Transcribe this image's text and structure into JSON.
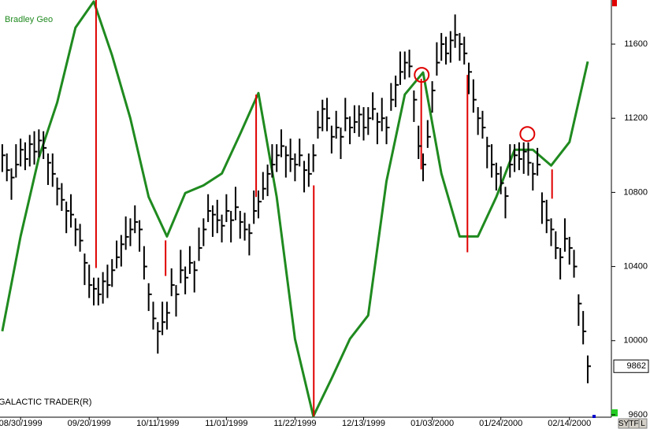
{
  "chart_data": {
    "type": "ohlc",
    "title": "Bradley Geo",
    "footer": "GALACTIC TRADER(R)",
    "buttons": [
      "SY",
      "TF",
      "L"
    ],
    "bar_color": "#000000",
    "xlim": [
      -0.5,
      133
    ],
    "ylim": [
      9587,
      11838
    ],
    "yticks": [
      9600,
      10000,
      10400,
      10800,
      11200,
      11600
    ],
    "xticks": [
      {
        "value": 4,
        "label": "08/30/1999"
      },
      {
        "value": 19,
        "label": "09/20/1999"
      },
      {
        "value": 34,
        "label": "10/11/1999"
      },
      {
        "value": 49,
        "label": "11/01/1999"
      },
      {
        "value": 64,
        "label": "11/22/1999"
      },
      {
        "value": 79,
        "label": "12/13/1999"
      },
      {
        "value": 94,
        "label": "01/03/2000"
      },
      {
        "value": 109,
        "label": "01/24/2000"
      },
      {
        "value": 124,
        "label": "02/14/2000"
      }
    ],
    "high": [
      11060,
      11010,
      10930,
      11060,
      11090,
      11070,
      11110,
      11130,
      11140,
      11130,
      11010,
      11010,
      10880,
      10850,
      10750,
      10790,
      10660,
      10630,
      10470,
      10410,
      10340,
      10340,
      10370,
      10410,
      10440,
      10540,
      10570,
      10670,
      10660,
      10730,
      10650,
      10510,
      10310,
      10210,
      10100,
      10210,
      10210,
      10390,
      10300,
      10490,
      10400,
      10510,
      10430,
      10610,
      10660,
      10790,
      10730,
      10760,
      10680,
      10790,
      10700,
      10830,
      10700,
      10690,
      10630,
      10810,
      10810,
      10910,
      10950,
      11060,
      11060,
      11140,
      11050,
      11090,
      11010,
      11090,
      10970,
      11010,
      11060,
      11240,
      11300,
      11310,
      11160,
      11240,
      11150,
      11310,
      11210,
      11270,
      11270,
      11260,
      11260,
      11340,
      11230,
      11310,
      11210,
      11390,
      11430,
      11560,
      11560,
      11570,
      11350,
      11160,
      11010,
      11190,
      11400,
      11610,
      11660,
      11640,
      11670,
      11760,
      11660,
      11640,
      11500,
      11410,
      11260,
      11240,
      11100,
      11060,
      10960,
      10940,
      10830,
      11060,
      11060,
      11070,
      11070,
      11070,
      10960,
      11040,
      10800,
      10760,
      10660,
      10590,
      10500,
      10660,
      10560,
      10490,
      10250,
      10160,
      9920
    ],
    "low": [
      10910,
      10860,
      10760,
      10880,
      10940,
      10920,
      10940,
      10950,
      10990,
      10980,
      10840,
      10830,
      10730,
      10700,
      10580,
      10610,
      10510,
      10480,
      10300,
      10230,
      10190,
      10190,
      10200,
      10230,
      10290,
      10390,
      10400,
      10490,
      10510,
      10580,
      10480,
      10330,
      10160,
      10060,
      9930,
      10030,
      10060,
      10240,
      10130,
      10310,
      10250,
      10360,
      10260,
      10430,
      10510,
      10640,
      10560,
      10580,
      10530,
      10640,
      10530,
      10650,
      10550,
      10540,
      10460,
      10630,
      10660,
      10760,
      10780,
      10880,
      10910,
      10990,
      10880,
      10910,
      10860,
      10940,
      10800,
      10830,
      10910,
      11090,
      11130,
      11130,
      11010,
      11090,
      10980,
      11130,
      11060,
      11120,
      11100,
      11080,
      11110,
      11190,
      11060,
      11130,
      11060,
      11240,
      11260,
      11380,
      11410,
      11420,
      11180,
      10980,
      10860,
      11040,
      11230,
      11430,
      11510,
      11490,
      11500,
      11580,
      11510,
      11490,
      11330,
      11230,
      11110,
      11090,
      10930,
      10880,
      10810,
      10790,
      10660,
      10880,
      10910,
      10920,
      10900,
      10890,
      10810,
      10890,
      10630,
      10580,
      10510,
      10440,
      10330,
      10480,
      10410,
      10340,
      10080,
      9980,
      9770
    ],
    "close": [
      11000,
      10920,
      10880,
      10950,
      11030,
      10980,
      11060,
      11020,
      11080,
      11040,
      10960,
      10900,
      10820,
      10760,
      10700,
      10680,
      10600,
      10540,
      10420,
      10300,
      10280,
      10250,
      10320,
      10300,
      10380,
      10450,
      10520,
      10560,
      10600,
      10640,
      10600,
      10400,
      10250,
      10120,
      10050,
      10100,
      10150,
      10300,
      10250,
      10380,
      10340,
      10420,
      10380,
      10500,
      10600,
      10700,
      10680,
      10650,
      10620,
      10700,
      10650,
      10720,
      10640,
      10600,
      10580,
      10700,
      10750,
      10820,
      10900,
      10950,
      11000,
      11050,
      11000,
      10980,
      10950,
      11000,
      10920,
      10900,
      11000,
      11150,
      11250,
      11200,
      11100,
      11150,
      11100,
      11200,
      11150,
      11180,
      11220,
      11150,
      11200,
      11250,
      11180,
      11200,
      11150,
      11300,
      11380,
      11450,
      11500,
      11480,
      11300,
      11050,
      10950,
      11100,
      11350,
      11500,
      11600,
      11550,
      11620,
      11650,
      11600,
      11550,
      11450,
      11300,
      11200,
      11150,
      11050,
      10950,
      10900,
      10850,
      10780,
      10950,
      11000,
      10980,
      11020,
      10960,
      10900,
      10950,
      10750,
      10650,
      10600,
      10500,
      10450,
      10550,
      10500,
      10400,
      10200,
      10050,
      9862
    ],
    "bradley": {
      "color": "#1f8a1f",
      "x": [
        0,
        4,
        8,
        12,
        16,
        20,
        24,
        28,
        32,
        36,
        40,
        44,
        48,
        52,
        56,
        60,
        64,
        68,
        72,
        76,
        80,
        84,
        88,
        92,
        96,
        100,
        104,
        108,
        112,
        116,
        120,
        124,
        128
      ],
      "values": [
        10051,
        10562,
        10987,
        11285,
        11689,
        11830,
        11540,
        11200,
        10775,
        10562,
        10796,
        10838,
        10902,
        11115,
        11336,
        10775,
        10009,
        9592,
        9796,
        10009,
        10136,
        10860,
        11328,
        11447,
        10902,
        10562,
        10562,
        10775,
        11030,
        11030,
        10945,
        11072,
        11506
      ]
    },
    "red_lines": {
      "color": "#e00000",
      "items": [
        {
          "x": 20.5,
          "y1": 11838,
          "y2": 10392
        },
        {
          "x": 35.7,
          "y1": 10541,
          "y2": 10349
        },
        {
          "x": 55.5,
          "y1": 11328,
          "y2": 10775
        },
        {
          "x": 68.1,
          "y1": 10838,
          "y2": 9592
        },
        {
          "x": 91.6,
          "y1": 11413,
          "y2": 10924
        },
        {
          "x": 101.7,
          "y1": 11434,
          "y2": 10477
        },
        {
          "x": 120.2,
          "y1": 10924,
          "y2": 10766
        }
      ]
    },
    "circles": {
      "color": "#e00000",
      "items": [
        {
          "x": 91.7,
          "y": 11434
        },
        {
          "x": 114.8,
          "y": 11115
        }
      ]
    }
  }
}
